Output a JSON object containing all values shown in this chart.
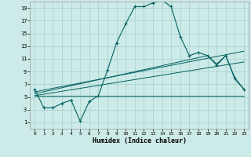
{
  "title": "",
  "xlabel": "Humidex (Indice chaleur)",
  "bg_color": "#cceae7",
  "grid_color": "#aad4d0",
  "line_color": "#006060",
  "xlim": [
    -0.5,
    23.5
  ],
  "ylim": [
    0,
    20
  ],
  "yticks": [
    1,
    3,
    5,
    7,
    9,
    11,
    13,
    15,
    17,
    19
  ],
  "xticks": [
    0,
    1,
    2,
    3,
    4,
    5,
    6,
    7,
    8,
    9,
    10,
    11,
    12,
    13,
    14,
    15,
    16,
    17,
    18,
    19,
    20,
    21,
    22,
    23
  ],
  "line1_x": [
    0,
    1,
    2,
    3,
    4,
    5,
    6,
    7,
    8,
    9,
    10,
    11,
    12,
    13,
    14,
    15,
    16,
    17,
    18,
    19,
    20,
    21,
    22,
    23
  ],
  "line1_y": [
    6.2,
    3.3,
    3.3,
    4.0,
    4.5,
    1.2,
    4.3,
    5.2,
    9.2,
    13.5,
    16.5,
    19.2,
    19.2,
    19.8,
    20.2,
    19.2,
    14.5,
    11.5,
    12.0,
    11.5,
    10.0,
    11.5,
    8.0,
    6.2
  ],
  "line2_x": [
    0,
    5,
    6,
    7,
    8,
    9,
    10,
    11,
    12,
    13,
    14,
    15,
    16,
    17,
    18,
    19,
    20,
    21,
    22,
    23
  ],
  "line2_y": [
    5.2,
    5.2,
    5.2,
    5.2,
    5.2,
    5.2,
    5.2,
    5.2,
    5.2,
    5.2,
    5.2,
    5.2,
    5.2,
    5.2,
    5.2,
    5.2,
    5.2,
    5.2,
    5.2,
    5.2
  ],
  "line3_x": [
    0,
    19,
    20,
    21,
    22,
    23
  ],
  "line3_y": [
    5.5,
    11.5,
    10.2,
    11.5,
    7.8,
    6.2
  ],
  "line4_x": [
    0,
    23
  ],
  "line4_y": [
    5.8,
    12.2
  ],
  "line5_x": [
    0,
    23
  ],
  "line5_y": [
    5.2,
    10.5
  ]
}
